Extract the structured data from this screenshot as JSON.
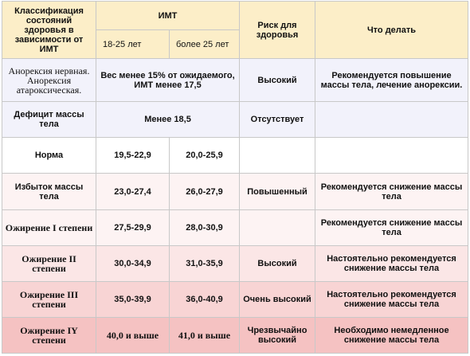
{
  "header": {
    "classification": "Классификация состояний здоровья в зависимости от ИМТ",
    "bmi": "ИМТ",
    "age_18_25": "18-25 лет",
    "age_over_25": "более 25 лет",
    "risk": "Риск для здоровья",
    "action": "Что делать"
  },
  "rows": [
    {
      "category": "Анорексия нервная. Анорексия атароксическая.",
      "bmi_merged": "Вес менее 15% от ожидаемого, ИМТ менее 17,5",
      "risk": "Высокий",
      "action": "Рекомендуется повышение массы тела, лечение анорексии."
    },
    {
      "category": "Дефицит массы тела",
      "bmi_merged": "Менее 18,5",
      "risk": "Отсутствует",
      "action": ""
    },
    {
      "category": "Норма",
      "bmi_18_25": "19,5-22,9",
      "bmi_over_25": "20,0-25,9",
      "risk": "",
      "action": ""
    },
    {
      "category": "Избыток массы тела",
      "bmi_18_25": "23,0-27,4",
      "bmi_over_25": "26,0-27,9",
      "risk": "Повышенный",
      "action": "Рекомендуется снижение массы тела"
    },
    {
      "category": "Ожирение I степени",
      "bmi_18_25": "27,5-29,9",
      "bmi_over_25": "28,0-30,9",
      "risk": "",
      "action": "Рекомендуется снижение массы тела"
    },
    {
      "category": "Ожирение II степени",
      "bmi_18_25": "30,0-34,9",
      "bmi_over_25": "31,0-35,9",
      "risk": "Высокий",
      "action": "Настоятельно рекомендуется снижение массы тела"
    },
    {
      "category": "Ожирение III степени",
      "bmi_18_25": "35,0-39,9",
      "bmi_over_25": "36,0-40,9",
      "risk": "Очень высокий",
      "action": "Настоятельно рекомендуется снижение массы тела"
    },
    {
      "category": "Ожирение IY степени",
      "bmi_18_25": "40,0 и выше",
      "bmi_over_25": "41,0 и выше",
      "risk": "Чрезвычайно высокий",
      "action": "Необходимо немедленное снижение массы тела"
    }
  ],
  "colors": {
    "header_bg": "#fceec8",
    "row_lavender": "#f2f2fb",
    "row_white": "#ffffff",
    "row_pink_1": "#fdf3f3",
    "row_pink_2": "#fbe6e6",
    "row_pink_3": "#f8d4d4",
    "row_pink_4": "#f5c2c2",
    "border": "#c8c8c8"
  }
}
